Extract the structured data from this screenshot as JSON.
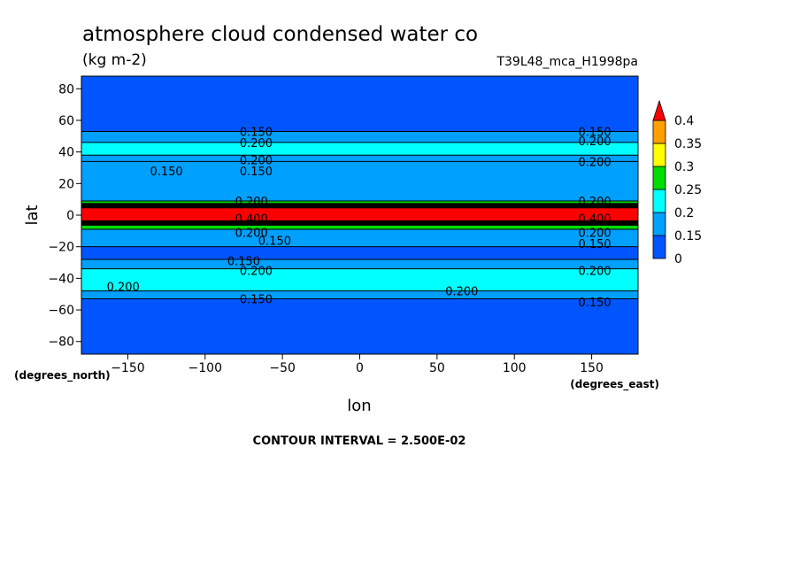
{
  "figure": {
    "title": "atmosphere cloud condensed water co",
    "units": "(kg m-2)",
    "run_id": "T39L48_mca_H1998pa",
    "contour_interval_text": "CONTOUR INTERVAL = 2.500E-02"
  },
  "chart_data": {
    "type": "heatmap",
    "title": "atmosphere cloud condensed water co",
    "subtitle": "(kg m-2)",
    "xlabel": "lon",
    "ylabel": "lat",
    "x_unit_label": "(degrees_east)",
    "y_unit_label": "(degrees_north)",
    "xlim": [
      -180,
      180
    ],
    "ylim": [
      -88,
      88
    ],
    "x_ticks": [
      -150,
      -100,
      -50,
      0,
      50,
      100,
      150
    ],
    "y_ticks": [
      80,
      60,
      40,
      20,
      0,
      -20,
      -40,
      -60,
      -80
    ],
    "x_tick_labels": [
      "−150",
      "−100",
      "−50",
      "0",
      "50",
      "100",
      "150"
    ],
    "y_tick_labels": [
      "80",
      "60",
      "40",
      "20",
      "0",
      "−20",
      "−40",
      "−60",
      "−80"
    ],
    "grid": false,
    "colorbar": {
      "placement": "right",
      "levels": [
        0,
        0.15,
        0.2,
        0.25,
        0.3,
        0.35,
        0.4
      ],
      "tick_labels": [
        "0",
        "0.15",
        "0.2",
        "0.25",
        "0.3",
        "0.35",
        "0.4"
      ],
      "colors": [
        "#0055ff",
        "#00a0ff",
        "#00ffff",
        "#00dd00",
        "#ffff00",
        "#ffa000",
        "#ff0000"
      ]
    },
    "zonal_bands": [
      {
        "lat_from": 88,
        "lat_to": 53,
        "value_range": [
          0,
          0.15
        ]
      },
      {
        "lat_from": 53,
        "lat_to": 46,
        "value_range": [
          0.15,
          0.2
        ]
      },
      {
        "lat_from": 46,
        "lat_to": 38,
        "value_range": [
          0.2,
          0.25
        ]
      },
      {
        "lat_from": 38,
        "lat_to": 34,
        "value_range": [
          0.15,
          0.2
        ]
      },
      {
        "lat_from": 34,
        "lat_to": 9,
        "value_range": [
          0.15,
          0.2
        ]
      },
      {
        "lat_from": 9,
        "lat_to": 6,
        "value_range": [
          0.25,
          0.35
        ]
      },
      {
        "lat_from": 6,
        "lat_to": -5,
        "value_range": [
          0.4,
          0.5
        ]
      },
      {
        "lat_from": -5,
        "lat_to": -9,
        "value_range": [
          0.25,
          0.35
        ]
      },
      {
        "lat_from": -9,
        "lat_to": -20,
        "value_range": [
          0.15,
          0.2
        ]
      },
      {
        "lat_from": -20,
        "lat_to": -28,
        "value_range": [
          0,
          0.15
        ]
      },
      {
        "lat_from": -28,
        "lat_to": -34,
        "value_range": [
          0.15,
          0.2
        ]
      },
      {
        "lat_from": -34,
        "lat_to": -48,
        "value_range": [
          0.2,
          0.25
        ]
      },
      {
        "lat_from": -48,
        "lat_to": -53,
        "value_range": [
          0.15,
          0.2
        ]
      },
      {
        "lat_from": -53,
        "lat_to": -88,
        "value_range": [
          0,
          0.15
        ]
      }
    ],
    "contour_labels": [
      {
        "text": "0.150",
        "lon": -67,
        "lat": 53
      },
      {
        "text": "0.200",
        "lon": -67,
        "lat": 46
      },
      {
        "text": "0.200",
        "lon": -67,
        "lat": 35
      },
      {
        "text": "0.150",
        "lon": -67,
        "lat": 28
      },
      {
        "text": "0.150",
        "lon": -125,
        "lat": 28
      },
      {
        "text": "0.150",
        "lon": 152,
        "lat": 53
      },
      {
        "text": "0.200",
        "lon": 152,
        "lat": 47
      },
      {
        "text": "0.200",
        "lon": 152,
        "lat": 34
      },
      {
        "text": "0.200",
        "lon": -70,
        "lat": 9
      },
      {
        "text": "0.400",
        "lon": -70,
        "lat": -2
      },
      {
        "text": "0.200",
        "lon": -70,
        "lat": -11
      },
      {
        "text": "0.150",
        "lon": -55,
        "lat": -16
      },
      {
        "text": "0.200",
        "lon": 152,
        "lat": 9
      },
      {
        "text": "0.400",
        "lon": 152,
        "lat": -2
      },
      {
        "text": "0.200",
        "lon": 152,
        "lat": -11
      },
      {
        "text": "0.150",
        "lon": 152,
        "lat": -18
      },
      {
        "text": "0.150",
        "lon": -75,
        "lat": -29
      },
      {
        "text": "0.200",
        "lon": -67,
        "lat": -35
      },
      {
        "text": "0.200",
        "lon": -153,
        "lat": -45
      },
      {
        "text": "0.200",
        "lon": 66,
        "lat": -48
      },
      {
        "text": "0.200",
        "lon": 152,
        "lat": -35
      },
      {
        "text": "0.150",
        "lon": -67,
        "lat": -53
      },
      {
        "text": "0.150",
        "lon": 152,
        "lat": -55
      }
    ]
  }
}
